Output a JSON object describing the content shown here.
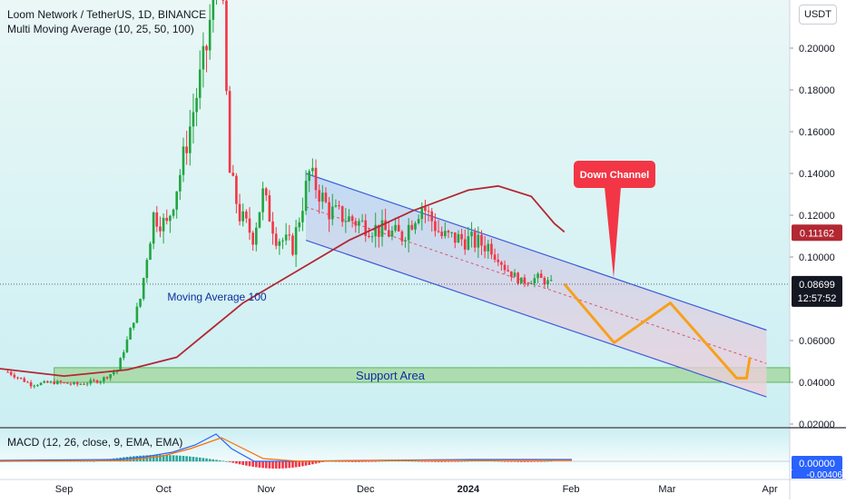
{
  "header": {
    "title": "Loom Network / TetherUS, 1D, BINANCE",
    "indicator": "Multi Moving Average (10, 25, 50, 100)",
    "macd_label": "MACD (12, 26, close, 9, EMA, EMA)",
    "currency_button": "USDT"
  },
  "annotations": {
    "down_channel": "Down Channel",
    "moving_average": "Moving Average 100",
    "support_area": "Support Area"
  },
  "price_labels": {
    "ma_value": "0.11162",
    "current_price": "0.08699",
    "countdown": "12:57:52",
    "macd_value": "0.00000",
    "macd_partial": "-0.00406"
  },
  "colors": {
    "bull": "#22a541",
    "bear": "#f23645",
    "ma100": "#b22833",
    "channel_line": "#3f5cd8",
    "channel_fill": "#9fc4ea",
    "projection": "#f7a01d",
    "support_fill": "#a8d8a4",
    "bg_top": "#eaf7f6",
    "bg_bottom": "#cbeff3",
    "callout": "#f23645"
  },
  "chart_data": {
    "type": "candlestick",
    "title": "Loom Network / TetherUS, 1D, BINANCE",
    "y_axis_ticks": [
      "0.20000",
      "0.18000",
      "0.16000",
      "0.14000",
      "0.12000",
      "0.10000",
      "0.06000",
      "0.04000",
      "0.02000"
    ],
    "ylim": [
      0.02,
      0.21
    ],
    "x_axis_ticks": [
      "Sep",
      "Oct",
      "Nov",
      "Dec",
      "2024",
      "Feb",
      "Mar",
      "Apr"
    ],
    "x_dates": [
      "2023-09-01",
      "2023-10-01",
      "2023-11-01",
      "2023-12-01",
      "2024-01-01",
      "2024-02-01",
      "2024-03-01",
      "2024-04-01"
    ],
    "close_path": [
      [
        "2023-08-15",
        0.045
      ],
      [
        "2023-08-22",
        0.039
      ],
      [
        "2023-08-29",
        0.04
      ],
      [
        "2023-09-05",
        0.039
      ],
      [
        "2023-09-12",
        0.041
      ],
      [
        "2023-09-17",
        0.046
      ],
      [
        "2023-09-20",
        0.06
      ],
      [
        "2023-09-24",
        0.08
      ],
      [
        "2023-09-28",
        0.12
      ],
      [
        "2023-10-02",
        0.115
      ],
      [
        "2023-10-06",
        0.14
      ],
      [
        "2023-10-10",
        0.17
      ],
      [
        "2023-10-14",
        0.2
      ],
      [
        "2023-10-18",
        0.25
      ],
      [
        "2023-10-21",
        0.14
      ],
      [
        "2023-10-24",
        0.12
      ],
      [
        "2023-10-28",
        0.11
      ],
      [
        "2023-10-31",
        0.13
      ],
      [
        "2023-11-04",
        0.11
      ],
      [
        "2023-11-09",
        0.105
      ],
      [
        "2023-11-14",
        0.14
      ],
      [
        "2023-11-20",
        0.122
      ],
      [
        "2023-11-28",
        0.117
      ],
      [
        "2023-12-05",
        0.113
      ],
      [
        "2023-12-12",
        0.11
      ],
      [
        "2023-12-18",
        0.125
      ],
      [
        "2023-12-24",
        0.11
      ],
      [
        "2024-01-01",
        0.108
      ],
      [
        "2024-01-08",
        0.105
      ],
      [
        "2024-01-12",
        0.095
      ],
      [
        "2024-01-17",
        0.088
      ],
      [
        "2024-01-22",
        0.09
      ],
      [
        "2024-01-26",
        0.087
      ]
    ],
    "ma100": [
      [
        "2023-08-10",
        0.047
      ],
      [
        "2023-09-01",
        0.043
      ],
      [
        "2023-09-20",
        0.046
      ],
      [
        "2023-10-05",
        0.052
      ],
      [
        "2023-10-15",
        0.065
      ],
      [
        "2023-10-25",
        0.078
      ],
      [
        "2023-11-10",
        0.093
      ],
      [
        "2023-11-26",
        0.108
      ],
      [
        "2023-12-15",
        0.122
      ],
      [
        "2024-01-01",
        0.132
      ],
      [
        "2024-01-10",
        0.134
      ],
      [
        "2024-01-20",
        0.129
      ],
      [
        "2024-01-27",
        0.116
      ],
      [
        "2024-01-30",
        0.112
      ]
    ],
    "channel_upper": [
      [
        "2023-11-13",
        0.14
      ],
      [
        "2024-03-31",
        0.065
      ]
    ],
    "channel_lower": [
      [
        "2023-11-13",
        0.108
      ],
      [
        "2024-03-31",
        0.033
      ]
    ],
    "channel_mid": [
      [
        "2023-11-13",
        0.124
      ],
      [
        "2024-03-31",
        0.049
      ]
    ],
    "support_area": [
      0.04,
      0.047
    ],
    "projection": [
      [
        "2024-01-30",
        0.087
      ],
      [
        "2024-02-14",
        0.059
      ],
      [
        "2024-03-02",
        0.078
      ],
      [
        "2024-03-22",
        0.042
      ],
      [
        "2024-03-25",
        0.042
      ],
      [
        "2024-03-26",
        0.052
      ]
    ],
    "current_price": 0.08699,
    "ma_value": 0.11162
  }
}
